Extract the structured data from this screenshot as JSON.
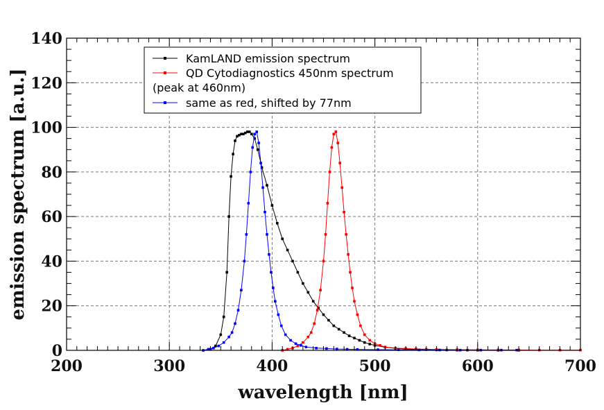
{
  "chart_data": {
    "type": "line",
    "xlabel": "wavelength [nm]",
    "ylabel": "emission spectrum [a.u.]",
    "xlim": [
      200,
      700
    ],
    "ylim": [
      0,
      140
    ],
    "xticks": [
      "200",
      "300",
      "400",
      "500",
      "600",
      "700"
    ],
    "yticks": [
      "0",
      "20",
      "40",
      "60",
      "80",
      "100",
      "120",
      "140"
    ],
    "grid": true,
    "legend": "top-center",
    "legend_entries": [
      {
        "label": "KamLAND emission spectrum",
        "color": "#000000"
      },
      {
        "label": "QD Cytodiagnostics 450nm spectrum",
        "color": "#ff0000"
      },
      {
        "label": "(peak at 460nm)",
        "color": ""
      },
      {
        "label": "same as red, shifted by 77nm",
        "color": "#0000ff"
      }
    ],
    "series": [
      {
        "name": "KamLAND emission spectrum",
        "color": "#000000",
        "x": [
          340,
          345,
          350,
          353,
          356,
          358,
          360,
          362,
          364,
          366,
          368,
          370,
          372,
          374,
          376,
          378,
          380,
          383,
          386,
          390,
          395,
          400,
          405,
          410,
          415,
          420,
          425,
          430,
          435,
          440,
          445,
          450,
          455,
          460,
          465,
          470,
          475,
          480,
          485,
          490,
          495,
          500,
          510,
          520,
          530,
          540,
          550,
          560,
          570,
          580,
          590,
          600,
          620,
          640
        ],
        "y": [
          0.5,
          2,
          7,
          15,
          35,
          60,
          78,
          88,
          94,
          96,
          96.5,
          97,
          97,
          97.5,
          98,
          98,
          97,
          95,
          90,
          82,
          74,
          65,
          57,
          50,
          45,
          40,
          35,
          30,
          26,
          22,
          19,
          16,
          13.5,
          11,
          9.5,
          8,
          6.5,
          5.5,
          4.5,
          3.5,
          2.8,
          2.2,
          1.4,
          0.9,
          0.6,
          0.4,
          0.3,
          0.2,
          0.15,
          0.1,
          0.08,
          0.06,
          0.04,
          0.02
        ]
      },
      {
        "name": "QD Cytodiagnostics 450nm spectrum",
        "color": "#ff0000",
        "x": [
          410,
          415,
          420,
          425,
          430,
          435,
          438,
          441,
          444,
          447,
          450,
          452,
          454,
          456,
          458,
          460,
          462,
          464,
          466,
          468,
          470,
          472,
          474,
          476,
          478,
          480,
          483,
          486,
          490,
          495,
          500,
          505,
          510,
          520,
          530,
          540,
          550,
          560,
          580,
          600,
          620,
          640,
          660,
          680,
          700
        ],
        "y": [
          0,
          0.5,
          1,
          2,
          3.5,
          6,
          8,
          12,
          18,
          27,
          40,
          52,
          66,
          80,
          91,
          97,
          98,
          93,
          84,
          73,
          62,
          52,
          43,
          35,
          28,
          22,
          16,
          11,
          7,
          4.5,
          3,
          2.2,
          1.5,
          1,
          0.8,
          0.6,
          0.5,
          0.4,
          0.3,
          0.25,
          0.2,
          0.15,
          0.1,
          0.1,
          0.1
        ]
      },
      {
        "name": "same as red, shifted by 77nm",
        "color": "#0000ff",
        "x": [
          333,
          338,
          343,
          348,
          353,
          358,
          361,
          364,
          367,
          370,
          373,
          375,
          377,
          379,
          381,
          383,
          385,
          387,
          389,
          391,
          393,
          395,
          397,
          399,
          401,
          403,
          406,
          409,
          413,
          418,
          423,
          428,
          433,
          443,
          453,
          463,
          473,
          483,
          503,
          523,
          543,
          563,
          583,
          603,
          623,
          638
        ],
        "y": [
          0,
          0.5,
          1,
          2,
          3.5,
          6,
          8,
          12,
          18,
          27,
          40,
          52,
          66,
          80,
          91,
          97,
          98,
          93,
          84,
          73,
          62,
          52,
          43,
          35,
          28,
          22,
          16,
          11,
          7,
          4.5,
          3,
          2.2,
          1.5,
          1,
          0.8,
          0.6,
          0.5,
          0.4,
          0.3,
          0.25,
          0.2,
          0.15,
          0.1,
          0.1,
          0.1,
          0.1
        ]
      }
    ]
  }
}
